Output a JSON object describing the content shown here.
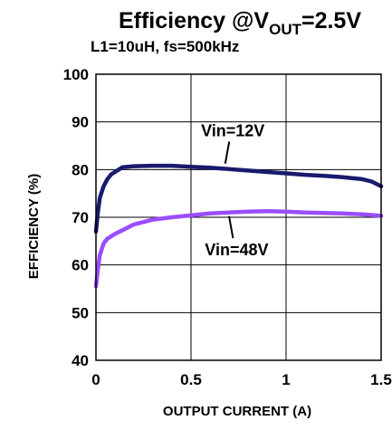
{
  "chart_data": {
    "type": "line",
    "title": {
      "prefix": "Efficiency @V",
      "subscript": "OUT",
      "suffix": "=2.5V"
    },
    "subtitle": "L1=10uH, fs=500kHz",
    "xlabel": "OUTPUT CURRENT (A)",
    "ylabel": "EFFICIENCY (%)",
    "xlim": [
      0,
      1.5
    ],
    "ylim": [
      40,
      100
    ],
    "xticks": [
      0,
      0.5,
      1,
      1.5
    ],
    "xtick_labels": [
      "0",
      "0.5",
      "1",
      "1.5"
    ],
    "yticks": [
      40,
      50,
      60,
      70,
      80,
      90,
      100
    ],
    "ytick_labels": [
      "40",
      "50",
      "60",
      "70",
      "80",
      "90",
      "100"
    ],
    "grid": true,
    "series": [
      {
        "name": "Vin=12V",
        "color": "#1a1a6e",
        "points": [
          [
            0.0,
            67.0
          ],
          [
            0.01,
            71.0
          ],
          [
            0.02,
            74.0
          ],
          [
            0.04,
            76.5
          ],
          [
            0.06,
            78.0
          ],
          [
            0.08,
            79.0
          ],
          [
            0.1,
            79.5
          ],
          [
            0.12,
            80.0
          ],
          [
            0.14,
            80.5
          ],
          [
            0.2,
            80.7
          ],
          [
            0.3,
            80.8
          ],
          [
            0.4,
            80.8
          ],
          [
            0.5,
            80.6
          ],
          [
            0.6,
            80.4
          ],
          [
            0.7,
            80.1
          ],
          [
            0.8,
            79.8
          ],
          [
            0.9,
            79.5
          ],
          [
            1.0,
            79.2
          ],
          [
            1.1,
            78.9
          ],
          [
            1.2,
            78.7
          ],
          [
            1.3,
            78.4
          ],
          [
            1.4,
            78.0
          ],
          [
            1.45,
            77.5
          ],
          [
            1.5,
            76.5
          ]
        ]
      },
      {
        "name": "Vin=48V",
        "color": "#9b4dff",
        "points": [
          [
            0.0,
            55.5
          ],
          [
            0.01,
            59.0
          ],
          [
            0.02,
            62.0
          ],
          [
            0.04,
            64.5
          ],
          [
            0.06,
            65.5
          ],
          [
            0.08,
            66.0
          ],
          [
            0.1,
            66.5
          ],
          [
            0.15,
            67.5
          ],
          [
            0.2,
            68.5
          ],
          [
            0.3,
            69.5
          ],
          [
            0.4,
            70.0
          ],
          [
            0.5,
            70.4
          ],
          [
            0.6,
            70.8
          ],
          [
            0.7,
            71.0
          ],
          [
            0.8,
            71.2
          ],
          [
            0.9,
            71.3
          ],
          [
            1.0,
            71.2
          ],
          [
            1.1,
            71.0
          ],
          [
            1.2,
            70.9
          ],
          [
            1.3,
            70.8
          ],
          [
            1.4,
            70.6
          ],
          [
            1.5,
            70.3
          ]
        ]
      }
    ],
    "annotations": [
      {
        "text": "Vin=12V",
        "label_x": 0.72,
        "label_y": 87,
        "target": [
          0.68,
          80.5
        ]
      },
      {
        "text": "Vin=48V",
        "label_x": 0.74,
        "label_y": 62,
        "target": [
          0.7,
          71.0
        ]
      }
    ]
  }
}
